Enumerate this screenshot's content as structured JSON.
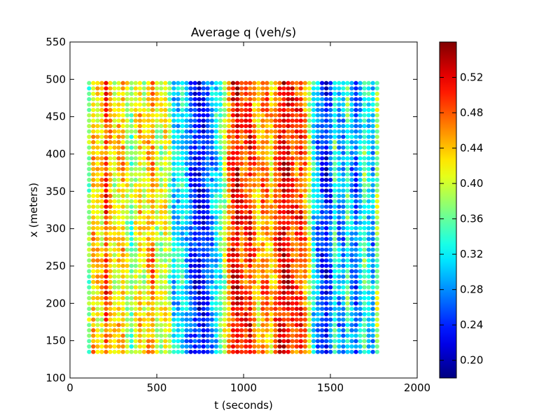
{
  "chart_data": {
    "type": "scatter",
    "title": "Average q (veh/s)",
    "xlabel": "t (seconds)",
    "ylabel": "x (meters)",
    "xlim": [
      0,
      2000
    ],
    "ylim": [
      100,
      550
    ],
    "xticks": [
      "0",
      "500",
      "1000",
      "1500",
      "2000"
    ],
    "yticks": [
      "100",
      "150",
      "200",
      "250",
      "300",
      "350",
      "400",
      "450",
      "500",
      "550"
    ],
    "grid": false,
    "colormap": "jet",
    "colorbar": {
      "range": [
        0.18,
        0.56
      ],
      "ticks": [
        "0.20",
        "0.24",
        "0.28",
        "0.32",
        "0.36",
        "0.40",
        "0.44",
        "0.48",
        "0.52"
      ]
    },
    "x_range": [
      110,
      1775
    ],
    "x_step": 24.4,
    "y_range": [
      135,
      495
    ],
    "y_step": 7.2,
    "column_profile_t": [
      110,
      140,
      175,
      210,
      250,
      300,
      350,
      400,
      430,
      470,
      510,
      560,
      600,
      650,
      700,
      750,
      790,
      840,
      880,
      930,
      960,
      1000,
      1040,
      1080,
      1120,
      1160,
      1200,
      1240,
      1270,
      1300,
      1340,
      1370,
      1410,
      1440,
      1470,
      1500,
      1530,
      1560,
      1600,
      1640,
      1670,
      1700,
      1740,
      1775
    ],
    "column_profile_q": [
      0.37,
      0.46,
      0.4,
      0.5,
      0.4,
      0.45,
      0.36,
      0.43,
      0.4,
      0.47,
      0.38,
      0.42,
      0.3,
      0.33,
      0.25,
      0.22,
      0.25,
      0.31,
      0.36,
      0.5,
      0.53,
      0.47,
      0.51,
      0.42,
      0.48,
      0.43,
      0.5,
      0.53,
      0.5,
      0.48,
      0.5,
      0.42,
      0.3,
      0.27,
      0.22,
      0.26,
      0.36,
      0.25,
      0.35,
      0.24,
      0.3,
      0.36,
      0.27,
      0.4
    ]
  }
}
